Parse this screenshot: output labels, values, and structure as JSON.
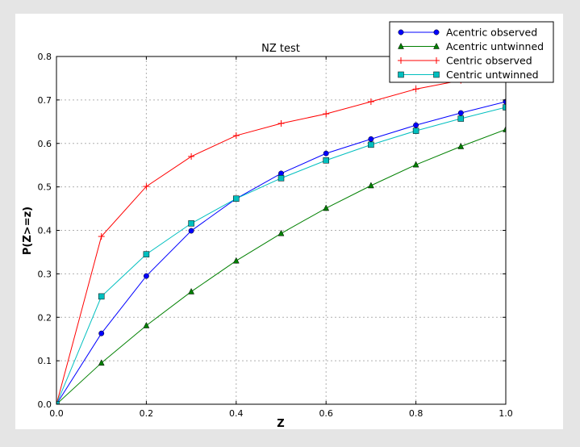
{
  "chart_data": {
    "type": "line",
    "title": "NZ test",
    "xlabel": "Z",
    "ylabel": "P(Z>=z)",
    "xlim": [
      0.0,
      1.0
    ],
    "ylim": [
      0.0,
      0.8
    ],
    "xticks": [
      "0.0",
      "0.2",
      "0.4",
      "0.6",
      "0.8",
      "1.0"
    ],
    "yticks": [
      "0.0",
      "0.1",
      "0.2",
      "0.3",
      "0.4",
      "0.5",
      "0.6",
      "0.7",
      "0.8"
    ],
    "grid": true,
    "legend_position": "top-right",
    "x": [
      0.0,
      0.1,
      0.2,
      0.3,
      0.4,
      0.5,
      0.6,
      0.7,
      0.8,
      0.9,
      1.0
    ],
    "series": [
      {
        "name": "Acentric observed",
        "color": "#0000ff",
        "marker": "circle",
        "values": [
          0.0,
          0.163,
          0.295,
          0.399,
          0.473,
          0.531,
          0.577,
          0.61,
          0.642,
          0.67,
          0.696
        ]
      },
      {
        "name": "Acentric untwinned",
        "color": "#008000",
        "marker": "triangle",
        "values": [
          0.0,
          0.095,
          0.181,
          0.259,
          0.33,
          0.393,
          0.451,
          0.503,
          0.551,
          0.593,
          0.632
        ]
      },
      {
        "name": "Centric observed",
        "color": "#ff0000",
        "marker": "plus",
        "values": [
          0.0,
          0.386,
          0.501,
          0.57,
          0.618,
          0.646,
          0.668,
          0.696,
          0.725,
          0.745,
          0.77
        ]
      },
      {
        "name": "Centric untwinned",
        "color": "#00bfbf",
        "marker": "square",
        "values": [
          0.0,
          0.248,
          0.345,
          0.416,
          0.473,
          0.52,
          0.561,
          0.597,
          0.629,
          0.657,
          0.683
        ]
      }
    ]
  }
}
